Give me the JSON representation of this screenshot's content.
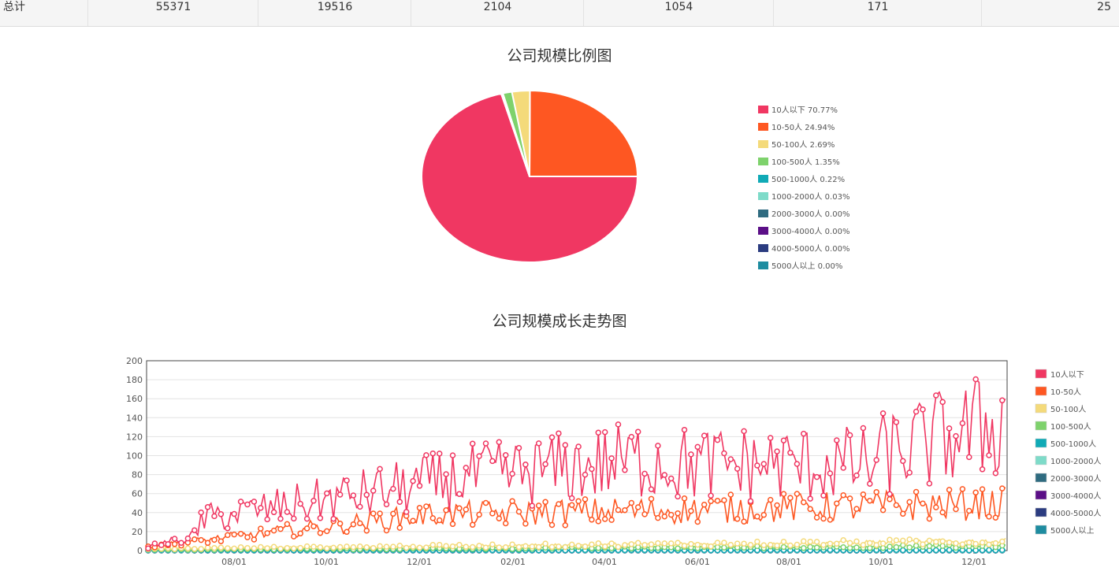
{
  "total_row": {
    "label": "总计",
    "values": [
      "55371",
      "19516",
      "2104",
      "1054",
      "171",
      "25"
    ]
  },
  "chart_data": [
    {
      "type": "pie",
      "title": "公司规模比例图",
      "slices": [
        {
          "label": "10人以下",
          "percent_label": "70.77%",
          "value": 70.77,
          "color": "#f03762"
        },
        {
          "label": "10-50人",
          "percent_label": "24.94%",
          "value": 24.94,
          "color": "#fe5722"
        },
        {
          "label": "50-100人",
          "percent_label": "2.69%",
          "value": 2.69,
          "color": "#f4da7a"
        },
        {
          "label": "100-500人",
          "percent_label": "1.35%",
          "value": 1.35,
          "color": "#7ed26c"
        },
        {
          "label": "500-1000人",
          "percent_label": "0.22%",
          "value": 0.22,
          "color": "#10aab6"
        },
        {
          "label": "1000-2000人",
          "percent_label": "0.03%",
          "value": 0.03,
          "color": "#7edbc9"
        },
        {
          "label": "2000-3000人",
          "percent_label": "0.00%",
          "value": 0.0,
          "color": "#2f6b80"
        },
        {
          "label": "3000-4000人",
          "percent_label": "0.00%",
          "value": 0.0,
          "color": "#5b0f87"
        },
        {
          "label": "4000-5000人",
          "percent_label": "0.00%",
          "value": 0.0,
          "color": "#2b3c80"
        },
        {
          "label": "5000人以上",
          "percent_label": "0.00%",
          "value": 0.0,
          "color": "#1e8ca0"
        }
      ],
      "legend_position": "right"
    },
    {
      "type": "line",
      "title": "公司规模成长走势图",
      "x_tick_labels": [
        "08/01",
        "10/01",
        "12/01",
        "02/01",
        "04/01",
        "06/01",
        "08/01",
        "10/01",
        "12/01"
      ],
      "ylim": [
        0,
        200
      ],
      "y_ticks": [
        0,
        20,
        40,
        60,
        80,
        100,
        120,
        140,
        160,
        180,
        200
      ],
      "grid": true,
      "legend_position": "right",
      "series": [
        {
          "name": "10人以下",
          "color": "#f03762",
          "approx_range": [
            0,
            186
          ]
        },
        {
          "name": "10-50人",
          "color": "#fe5722",
          "approx_range": [
            0,
            72
          ]
        },
        {
          "name": "50-100人",
          "color": "#f4da7a",
          "approx_range": [
            0,
            14
          ]
        },
        {
          "name": "100-500人",
          "color": "#7ed26c",
          "approx_range": [
            0,
            8
          ]
        },
        {
          "name": "500-1000人",
          "color": "#10aab6",
          "approx_range": [
            0,
            3
          ]
        },
        {
          "name": "1000-2000人",
          "color": "#7edbc9",
          "approx_range": [
            0,
            1
          ]
        },
        {
          "name": "2000-3000人",
          "color": "#2f6b80",
          "approx_range": [
            0,
            0
          ]
        },
        {
          "name": "3000-4000人",
          "color": "#5b0f87",
          "approx_range": [
            0,
            0
          ]
        },
        {
          "name": "4000-5000人",
          "color": "#2b3c80",
          "approx_range": [
            0,
            0
          ]
        },
        {
          "name": "5000人以上",
          "color": "#1e8ca0",
          "approx_range": [
            0,
            0
          ]
        }
      ]
    }
  ]
}
